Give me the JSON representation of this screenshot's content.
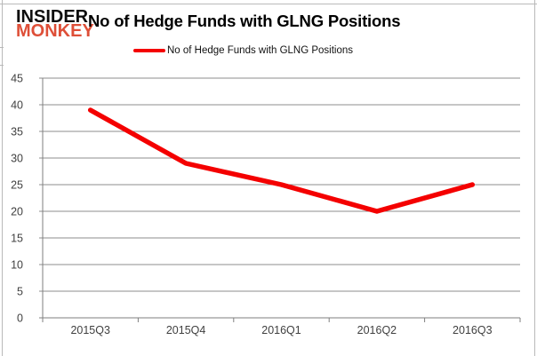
{
  "logo": {
    "line1": "INSIDER",
    "line2": "MONKEY",
    "color1": "#0d0d0d",
    "color2": "#de4f38"
  },
  "chart_data": {
    "type": "line",
    "title": "No of Hedge Funds with GLNG Positions",
    "categories": [
      "2015Q3",
      "2015Q4",
      "2016Q1",
      "2016Q2",
      "2016Q3"
    ],
    "series": [
      {
        "name": "No of Hedge Funds with GLNG Positions",
        "values": [
          39,
          29,
          25,
          20,
          25
        ],
        "color": "#f40000"
      }
    ],
    "xlabel": "",
    "ylabel": "",
    "ylim": [
      0,
      45
    ],
    "yticks": [
      45,
      40,
      35,
      30,
      25,
      20,
      15,
      10,
      5,
      0
    ],
    "grid": true,
    "legend_position": "top",
    "grid_color": "#8c8c8c",
    "axis_color": "#7f7f7f",
    "tick_label_color": "#404040"
  }
}
